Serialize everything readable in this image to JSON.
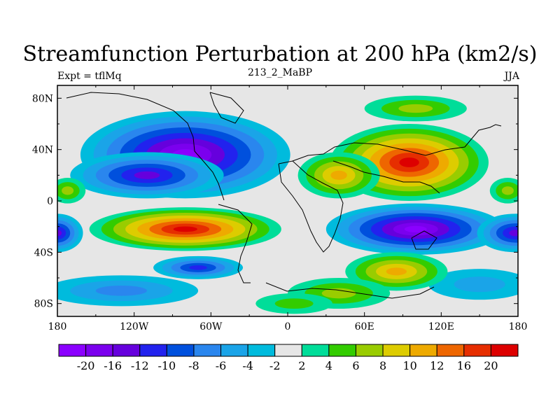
{
  "chart_data": {
    "type": "heatmap",
    "title": "Streamfunction Perturbation at 200 hPa (km2/s)",
    "left_label": "Expt = tflMq",
    "center_label": "213_2_MaBP",
    "right_label": "JJA",
    "x_ticks": [
      "180",
      "120W",
      "60W",
      "0",
      "60E",
      "120E",
      "180"
    ],
    "y_ticks": [
      "80N",
      "40N",
      "0",
      "40S",
      "80S"
    ],
    "xlim": [
      -180,
      180
    ],
    "ylim": [
      -90,
      90
    ],
    "colorbar_levels": [
      "-20",
      "-16",
      "-12",
      "-10",
      "-8",
      "-6",
      "-4",
      "-2",
      "2",
      "4",
      "6",
      "8",
      "10",
      "12",
      "16",
      "20"
    ],
    "colorbar_colors": [
      "#8b00ff",
      "#7b00ee",
      "#6600dd",
      "#2222ee",
      "#0050dd",
      "#2a86ee",
      "#1aa4e8",
      "#00bbdd",
      "#e6e6e6",
      "#00dd99",
      "#33cc00",
      "#99cc00",
      "#ddcc00",
      "#eeaa00",
      "#ee6600",
      "#e62e00",
      "#dd0000"
    ],
    "blobs": [
      {
        "lon": -80,
        "lat": 36,
        "rlon": 82,
        "rlat": 34,
        "value": -20
      },
      {
        "lon": -110,
        "lat": 20,
        "rlon": 60,
        "rlat": 18,
        "value": -12
      },
      {
        "lon": 100,
        "lat": -22,
        "rlon": 70,
        "rlat": 20,
        "value": -20
      },
      {
        "lon": 178,
        "lat": -25,
        "rlon": 30,
        "rlat": 15,
        "value": -12
      },
      {
        "lon": -180,
        "lat": -25,
        "rlon": 20,
        "rlat": 15,
        "value": -12
      },
      {
        "lon": -70,
        "lat": -52,
        "rlon": 35,
        "rlat": 9,
        "value": -10
      },
      {
        "lon": -130,
        "lat": -70,
        "rlon": 60,
        "rlat": 12,
        "value": -6
      },
      {
        "lon": 150,
        "lat": -65,
        "rlon": 40,
        "rlat": 12,
        "value": -4
      },
      {
        "lon": -80,
        "lat": -22,
        "rlon": 75,
        "rlat": 17,
        "value": 20
      },
      {
        "lon": 95,
        "lat": 30,
        "rlon": 62,
        "rlat": 30,
        "value": 20
      },
      {
        "lon": 40,
        "lat": 20,
        "rlon": 32,
        "rlat": 18,
        "value": 10
      },
      {
        "lon": 85,
        "lat": -55,
        "rlon": 40,
        "rlat": 15,
        "value": 10
      },
      {
        "lon": 40,
        "lat": -72,
        "rlon": 40,
        "rlat": 12,
        "value": 6
      },
      {
        "lon": 5,
        "lat": -80,
        "rlon": 30,
        "rlat": 8,
        "value": 4
      },
      {
        "lon": -172,
        "lat": 8,
        "rlon": 14,
        "rlat": 10,
        "value": 6
      },
      {
        "lon": 172,
        "lat": 8,
        "rlon": 14,
        "rlat": 10,
        "value": 6
      },
      {
        "lon": 100,
        "lat": 72,
        "rlon": 40,
        "rlat": 10,
        "value": 6
      }
    ]
  }
}
